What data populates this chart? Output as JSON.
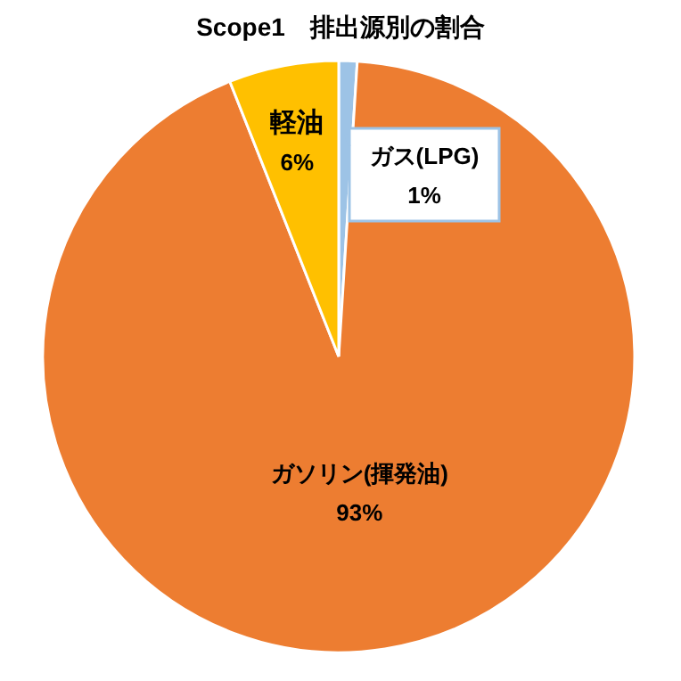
{
  "chart_data": {
    "type": "pie",
    "title": "Scope1　排出源別の割合",
    "categories": [
      "ガス(LPG)",
      "ガソリン(揮発油)",
      "軽油"
    ],
    "values": [
      1,
      93,
      6
    ],
    "colors": [
      "#9dc3e6",
      "#ed7d31",
      "#ffc000"
    ],
    "value_labels": [
      "1%",
      "93%",
      "6%"
    ]
  }
}
